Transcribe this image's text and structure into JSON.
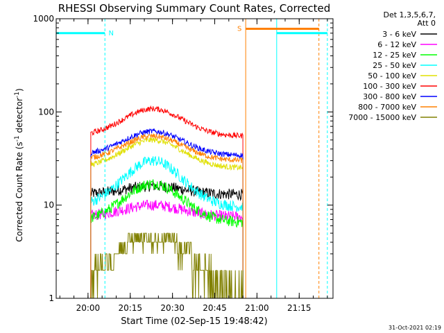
{
  "chart_data": {
    "type": "line",
    "title": "RHESSI Observing Summary Count Rates, Corrected",
    "xlabel": "Start Time (02-Sep-15 19:48:42)",
    "ylabel_main": "Corrected Count Rate (s",
    "ylabel_sup1": "-1",
    "ylabel_mid": " detector",
    "ylabel_sup2": "-1",
    "ylabel_end": ")",
    "yscale": "log",
    "ylim": [
      1,
      1000
    ],
    "xlim": [
      "19:48:42",
      "21:27:00"
    ],
    "y_ticks": [
      {
        "value": 1,
        "label": "1"
      },
      {
        "value": 10,
        "label": "10"
      },
      {
        "value": 100,
        "label": "100"
      },
      {
        "value": 1000,
        "label": "1000"
      }
    ],
    "x_ticks": [
      {
        "time": "20:00",
        "label": "20:00"
      },
      {
        "time": "20:15",
        "label": "20:15"
      },
      {
        "time": "20:30",
        "label": "20:30"
      },
      {
        "time": "20:45",
        "label": "20:45"
      },
      {
        "time": "21:00",
        "label": "21:00"
      },
      {
        "time": "21:15",
        "label": "21:15"
      }
    ],
    "legend_header": [
      "Det 1,3,5,6,7,",
      "Att 0"
    ],
    "legend_position": "outside-right",
    "data_start": "20:01",
    "data_end": "20:55",
    "series": [
      {
        "name": "3 - 6 keV",
        "color": "#000000",
        "base": 13,
        "peak": 16
      },
      {
        "name": "6 - 12 keV",
        "color": "#ff00ff",
        "base": 7.5,
        "peak": 10
      },
      {
        "name": "12 - 25 keV",
        "color": "#00ff00",
        "base": 6.5,
        "peak": 17
      },
      {
        "name": "25 - 50 keV",
        "color": "#00ffff",
        "base": 9.5,
        "peak": 30
      },
      {
        "name": "50 - 100 keV",
        "color": "#e0e000",
        "base": 25,
        "peak": 50
      },
      {
        "name": "100 - 300 keV",
        "color": "#ff0000",
        "base": 55,
        "peak": 108
      },
      {
        "name": "300 - 800 keV",
        "color": "#0000ff",
        "base": 34,
        "peak": 62
      },
      {
        "name": "800 - 7000 keV",
        "color": "#ff8000",
        "base": 30,
        "peak": 55
      },
      {
        "name": "7000 - 15000 keV",
        "color": "#808000",
        "base": 1.5,
        "peak": 5
      }
    ],
    "flag_bars": [
      {
        "label": "N",
        "color": "#00ffff",
        "start": "19:48:42",
        "end": "20:06",
        "value": 700
      },
      {
        "label": "S",
        "color": "#ff8000",
        "start": "20:56",
        "end": "21:22",
        "value": 780
      },
      {
        "label": "",
        "color": "#00ffff",
        "start": "21:07",
        "end": "21:25",
        "value": 700
      }
    ],
    "vertical_lines": [
      {
        "time": "19:48:42",
        "color": "#00ffff",
        "style": "solid"
      },
      {
        "time": "20:06",
        "color": "#00ffff",
        "style": "dashed"
      },
      {
        "time": "20:56",
        "color": "#ff8000",
        "style": "solid"
      },
      {
        "time": "21:07",
        "color": "#00ffff",
        "style": "solid"
      },
      {
        "time": "21:22",
        "color": "#ff8000",
        "style": "dashed"
      },
      {
        "time": "21:25",
        "color": "#00ffff",
        "style": "dashed"
      }
    ],
    "grid": false
  },
  "timestamp": "31-Oct-2021 02:19"
}
